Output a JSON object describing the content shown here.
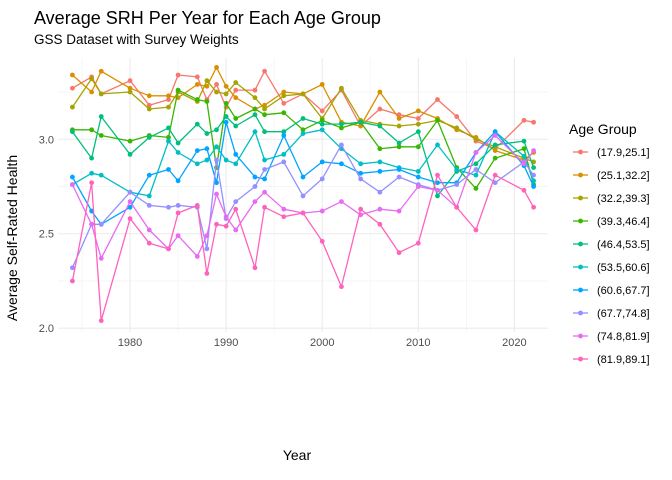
{
  "chart_data": {
    "type": "line",
    "title": "Average SRH Per Year for Each Age Group",
    "subtitle": "GSS Dataset with Survey Weights",
    "xlabel": "Year",
    "ylabel": "Average Self-Rated Health",
    "xlim": [
      1972.5,
      2023.5
    ],
    "ylim": [
      1.98,
      3.43
    ],
    "x_ticks": [
      1980,
      1990,
      2000,
      2010,
      2020
    ],
    "y_ticks": [
      2.0,
      2.5,
      3.0
    ],
    "y_tick_labels": [
      "2.0",
      "2.5",
      "3.0"
    ],
    "grid": true,
    "legend": {
      "title": "Age Group",
      "position": "right"
    },
    "x": [
      1974,
      1976,
      1977,
      1980,
      1982,
      1984,
      1985,
      1987,
      1988,
      1989,
      1990,
      1991,
      1993,
      1994,
      1996,
      1998,
      2000,
      2002,
      2004,
      2006,
      2008,
      2010,
      2012,
      2014,
      2016,
      2018,
      2021,
      2022
    ],
    "series": [
      {
        "name": "(17.9,25.1]",
        "color": "#F8766D",
        "values": [
          3.27,
          3.33,
          3.24,
          3.31,
          3.18,
          3.21,
          3.34,
          3.33,
          3.21,
          3.29,
          3.17,
          3.26,
          3.26,
          3.36,
          3.19,
          3.24,
          3.15,
          3.26,
          3.07,
          3.16,
          3.13,
          3.11,
          3.21,
          3.12,
          2.99,
          2.95,
          3.1,
          3.09
        ]
      },
      {
        "name": "(25.1,32.2]",
        "color": "#D89000",
        "values": [
          3.34,
          3.25,
          3.36,
          3.27,
          3.23,
          3.23,
          3.22,
          3.29,
          3.28,
          3.38,
          3.28,
          3.22,
          3.16,
          3.18,
          3.25,
          3.24,
          3.29,
          3.09,
          3.07,
          3.25,
          3.11,
          3.15,
          3.11,
          3.05,
          3.01,
          2.94,
          2.89,
          2.93
        ]
      },
      {
        "name": "(32.2,39.3]",
        "color": "#A3A500",
        "values": [
          3.17,
          3.32,
          3.24,
          3.25,
          3.16,
          3.17,
          3.25,
          3.2,
          3.31,
          3.25,
          3.24,
          3.3,
          3.22,
          3.16,
          3.23,
          3.24,
          3.11,
          3.27,
          3.1,
          3.08,
          3.07,
          3.08,
          3.1,
          3.06,
          3.0,
          2.96,
          2.9,
          2.88
        ]
      },
      {
        "name": "(39.3,46.4]",
        "color": "#39B600",
        "values": [
          3.05,
          3.05,
          3.02,
          2.99,
          3.02,
          3.01,
          3.26,
          3.21,
          3.2,
          2.85,
          3.19,
          3.11,
          3.16,
          3.13,
          3.14,
          3.05,
          3.1,
          3.06,
          3.09,
          2.95,
          2.96,
          2.96,
          3.1,
          2.85,
          2.74,
          2.9,
          2.95,
          2.76
        ]
      },
      {
        "name": "(46.4,53.5]",
        "color": "#00BF7D",
        "values": [
          3.04,
          2.9,
          3.12,
          2.92,
          3.01,
          3.06,
          2.98,
          3.08,
          3.03,
          3.05,
          3.12,
          3.07,
          3.13,
          3.04,
          3.04,
          3.11,
          3.08,
          3.08,
          3.09,
          3.07,
          2.98,
          3.04,
          2.7,
          2.83,
          2.87,
          2.97,
          2.99,
          2.85
        ]
      },
      {
        "name": "(53.5,60.6]",
        "color": "#00BFC4",
        "values": [
          2.76,
          2.82,
          2.81,
          2.72,
          2.7,
          2.99,
          2.93,
          2.87,
          2.89,
          2.96,
          2.89,
          2.87,
          3.04,
          2.89,
          2.92,
          3.03,
          3.05,
          2.95,
          2.87,
          2.88,
          2.85,
          2.83,
          2.97,
          2.84,
          2.81,
          3.04,
          2.91,
          2.78
        ]
      },
      {
        "name": "(60.6,67.7]",
        "color": "#00A5FF",
        "values": [
          2.8,
          2.62,
          2.55,
          2.64,
          2.81,
          2.84,
          2.78,
          2.94,
          2.95,
          2.77,
          3.09,
          2.92,
          2.8,
          2.79,
          3.02,
          2.8,
          2.88,
          2.87,
          2.82,
          2.83,
          2.84,
          2.8,
          2.77,
          2.77,
          2.93,
          3.04,
          2.86,
          2.75
        ]
      },
      {
        "name": "(67.7,74.8]",
        "color": "#9590FF",
        "values": [
          2.32,
          2.55,
          2.55,
          2.72,
          2.65,
          2.64,
          2.65,
          2.64,
          2.42,
          2.89,
          2.58,
          2.67,
          2.75,
          2.84,
          2.88,
          2.7,
          2.79,
          2.97,
          2.79,
          2.72,
          2.8,
          2.76,
          2.73,
          2.76,
          2.84,
          2.77,
          2.88,
          2.81
        ]
      },
      {
        "name": "(74.8,81.9]",
        "color": "#E76BF3",
        "values": [
          2.76,
          2.55,
          2.37,
          2.67,
          2.52,
          2.42,
          2.49,
          2.38,
          2.49,
          2.71,
          2.59,
          2.52,
          2.67,
          2.72,
          2.63,
          2.61,
          2.62,
          2.67,
          2.6,
          2.63,
          2.62,
          2.75,
          2.73,
          2.64,
          2.93,
          3.02,
          2.87,
          2.94
        ]
      },
      {
        "name": "(81.9,89.1]",
        "color": "#FF62BC",
        "values": [
          2.25,
          2.77,
          2.04,
          2.58,
          2.45,
          2.42,
          2.61,
          2.65,
          2.29,
          2.55,
          2.54,
          2.63,
          2.32,
          2.64,
          2.59,
          2.61,
          2.46,
          2.22,
          2.63,
          2.55,
          2.4,
          2.45,
          2.81,
          2.64,
          2.52,
          2.81,
          2.73,
          2.64
        ]
      }
    ]
  }
}
